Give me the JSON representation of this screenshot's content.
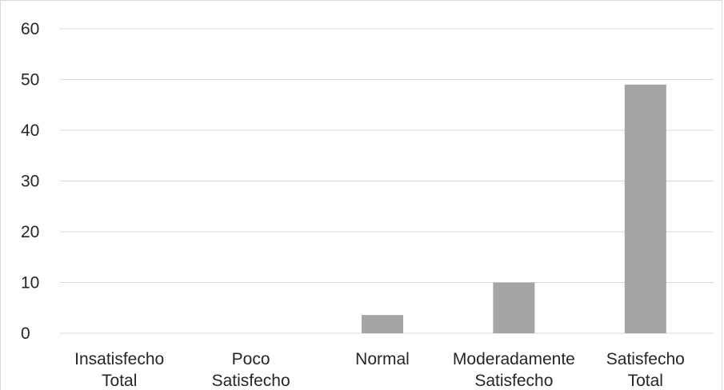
{
  "chart_data": {
    "type": "bar",
    "title": "",
    "xlabel": "",
    "ylabel": "",
    "categories": [
      [
        "Insatisfecho",
        "Total"
      ],
      [
        "Poco",
        "Satisfecho"
      ],
      [
        "Normal"
      ],
      [
        "Moderadamente",
        "Satisfecho"
      ],
      [
        "Satisfecho",
        "Total"
      ]
    ],
    "values": [
      0,
      0,
      3.6,
      10,
      49
    ],
    "ylim": [
      0,
      60
    ],
    "yticks": [
      0,
      10,
      20,
      30,
      40,
      50,
      60
    ],
    "grid": true,
    "legend": "none",
    "bar_color": "#a5a5a5",
    "grid_color": "#d9d9d9",
    "text_color": "#262626"
  }
}
